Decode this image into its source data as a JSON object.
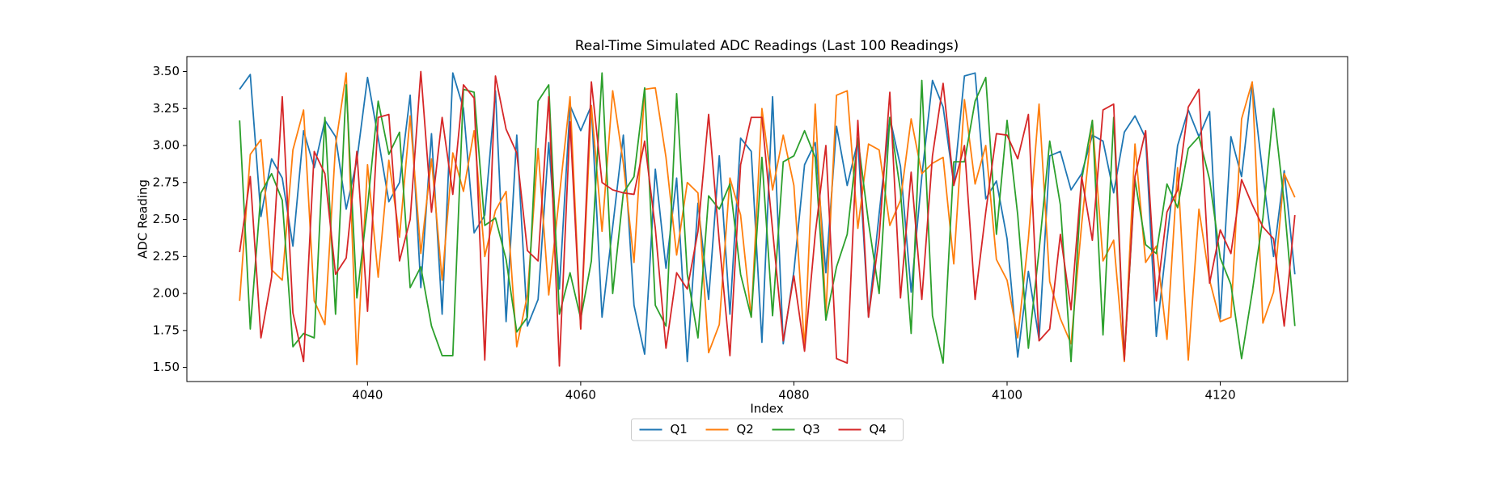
{
  "chart_data": {
    "type": "line",
    "title": "Real-Time Simulated ADC Readings (Last 100 Readings)",
    "x_label": "Index",
    "y_label": "ADC Reading",
    "x": [
      4028,
      4029,
      4030,
      4031,
      4032,
      4033,
      4034,
      4035,
      4036,
      4037,
      4038,
      4039,
      4040,
      4041,
      4042,
      4043,
      4044,
      4045,
      4046,
      4047,
      4048,
      4049,
      4050,
      4051,
      4052,
      4053,
      4054,
      4055,
      4056,
      4057,
      4058,
      4059,
      4060,
      4061,
      4062,
      4063,
      4064,
      4065,
      4066,
      4067,
      4068,
      4069,
      4070,
      4071,
      4072,
      4073,
      4074,
      4075,
      4076,
      4077,
      4078,
      4079,
      4080,
      4081,
      4082,
      4083,
      4084,
      4085,
      4086,
      4087,
      4088,
      4089,
      4090,
      4091,
      4092,
      4093,
      4094,
      4095,
      4096,
      4097,
      4098,
      4099,
      4100,
      4101,
      4102,
      4103,
      4104,
      4105,
      4106,
      4107,
      4108,
      4109,
      4110,
      4111,
      4112,
      4113,
      4114,
      4115,
      4116,
      4117,
      4118,
      4119,
      4120,
      4121,
      4122,
      4123,
      4124,
      4125,
      4126,
      4127
    ],
    "series": [
      {
        "name": "Q1",
        "color": "#1f77b4",
        "values": [
          3.38,
          3.48,
          2.52,
          2.91,
          2.78,
          2.32,
          3.1,
          2.85,
          3.17,
          3.06,
          2.57,
          2.9,
          3.46,
          3.05,
          2.62,
          2.75,
          3.34,
          2.04,
          3.08,
          1.86,
          3.49,
          3.25,
          2.41,
          2.53,
          3.37,
          1.81,
          3.07,
          1.78,
          1.96,
          3.02,
          2.03,
          3.27,
          3.1,
          3.27,
          1.84,
          2.45,
          3.07,
          1.92,
          1.59,
          2.84,
          2.17,
          2.78,
          1.54,
          2.61,
          1.96,
          2.93,
          1.86,
          3.05,
          2.96,
          1.67,
          3.33,
          1.66,
          2.15,
          2.87,
          3.02,
          2.14,
          3.13,
          2.73,
          3.03,
          1.84,
          2.54,
          3.19,
          2.86,
          2.01,
          2.79,
          3.44,
          3.26,
          2.74,
          3.47,
          3.49,
          2.64,
          2.76,
          2.37,
          1.57,
          2.15,
          1.69,
          2.93,
          2.96,
          2.7,
          2.81,
          3.07,
          3.03,
          2.68,
          3.09,
          3.2,
          3.05,
          1.71,
          2.36,
          3.0,
          3.24,
          3.06,
          3.23,
          1.83,
          3.06,
          2.79,
          3.42,
          2.8,
          2.25,
          2.83,
          2.13
        ]
      },
      {
        "name": "Q2",
        "color": "#ff7f0e",
        "values": [
          1.95,
          2.94,
          3.04,
          2.16,
          2.09,
          2.97,
          3.24,
          1.95,
          1.79,
          3.0,
          3.49,
          1.52,
          2.87,
          2.11,
          2.9,
          2.38,
          3.2,
          2.27,
          2.91,
          2.09,
          2.95,
          2.69,
          3.1,
          2.25,
          2.56,
          2.69,
          1.64,
          1.99,
          2.98,
          1.99,
          2.66,
          3.33,
          1.76,
          3.27,
          2.42,
          3.37,
          2.88,
          2.21,
          3.38,
          3.39,
          2.92,
          2.26,
          2.75,
          2.68,
          1.6,
          1.79,
          2.78,
          2.53,
          1.84,
          3.25,
          2.7,
          3.07,
          2.73,
          1.63,
          3.28,
          1.86,
          3.34,
          3.37,
          2.44,
          3.01,
          2.97,
          2.46,
          2.63,
          3.18,
          2.81,
          2.88,
          2.92,
          2.2,
          3.31,
          2.74,
          3.0,
          2.23,
          2.09,
          1.7,
          2.37,
          3.28,
          2.08,
          1.83,
          1.66,
          2.47,
          3.17,
          2.22,
          2.36,
          1.54,
          3.01,
          2.21,
          2.32,
          1.69,
          2.85,
          1.55,
          2.57,
          2.09,
          1.81,
          1.84,
          3.18,
          3.43,
          1.8,
          2.01,
          2.81,
          2.65
        ]
      },
      {
        "name": "Q3",
        "color": "#2ca02c",
        "values": [
          3.17,
          1.76,
          2.68,
          2.81,
          2.63,
          1.64,
          1.73,
          1.7,
          3.19,
          1.86,
          3.41,
          1.97,
          2.59,
          3.3,
          2.94,
          3.09,
          2.04,
          2.18,
          1.78,
          1.58,
          1.58,
          3.38,
          3.36,
          2.46,
          2.51,
          2.23,
          1.74,
          1.84,
          3.3,
          3.41,
          1.86,
          2.14,
          1.83,
          2.22,
          3.49,
          2.0,
          2.68,
          2.79,
          3.39,
          1.92,
          1.78,
          3.35,
          2.13,
          1.7,
          2.66,
          2.57,
          2.74,
          2.13,
          1.84,
          2.92,
          1.85,
          2.89,
          2.93,
          3.1,
          2.92,
          1.82,
          2.18,
          2.4,
          3.05,
          2.48,
          2.0,
          3.19,
          2.69,
          1.73,
          3.44,
          1.85,
          1.53,
          2.89,
          2.89,
          3.3,
          3.46,
          2.4,
          3.17,
          2.53,
          1.63,
          2.29,
          3.03,
          2.6,
          1.54,
          2.77,
          3.17,
          1.72,
          3.19,
          1.56,
          2.77,
          2.33,
          2.27,
          2.74,
          2.58,
          2.98,
          3.06,
          2.77,
          2.24,
          2.06,
          1.56,
          2.01,
          2.51,
          3.25,
          2.61,
          1.78
        ]
      },
      {
        "name": "Q4",
        "color": "#d62728",
        "values": [
          2.28,
          2.79,
          1.7,
          2.11,
          3.33,
          1.87,
          1.54,
          2.96,
          2.81,
          2.13,
          2.24,
          2.96,
          1.88,
          3.19,
          3.21,
          2.22,
          2.5,
          3.5,
          2.55,
          3.19,
          2.67,
          3.41,
          3.32,
          1.55,
          3.47,
          3.11,
          2.95,
          2.29,
          2.22,
          3.33,
          1.51,
          3.16,
          1.76,
          3.43,
          2.75,
          2.7,
          2.68,
          2.67,
          3.03,
          2.44,
          1.63,
          2.14,
          2.03,
          2.42,
          3.21,
          2.35,
          1.58,
          2.87,
          3.19,
          3.19,
          2.43,
          1.68,
          2.12,
          1.61,
          2.4,
          3.0,
          1.56,
          1.53,
          3.17,
          1.84,
          2.38,
          3.36,
          1.97,
          2.82,
          1.96,
          2.93,
          3.42,
          2.73,
          3.0,
          1.96,
          2.55,
          3.08,
          3.07,
          2.91,
          3.21,
          1.68,
          1.76,
          2.4,
          1.89,
          2.79,
          2.36,
          3.24,
          3.28,
          1.55,
          2.79,
          3.1,
          1.95,
          2.55,
          2.7,
          3.26,
          3.38,
          2.07,
          2.43,
          2.27,
          2.77,
          2.6,
          2.45,
          2.37,
          1.78,
          2.53
        ]
      }
    ],
    "xlim": [
      4023.05,
      4131.95
    ],
    "xticks": [
      4040,
      4060,
      4080,
      4100,
      4120
    ],
    "ylim": [
      1.405,
      3.601
    ],
    "yticks": [
      {
        "value": 1.5,
        "label": "1.50"
      },
      1.75,
      {
        "value": 2.0,
        "label": "2.00"
      },
      2.25,
      {
        "value": 2.5,
        "label": "2.50"
      },
      2.75,
      {
        "value": 3.0,
        "label": "3.00"
      },
      3.25,
      {
        "value": 3.5,
        "label": "3.50"
      }
    ],
    "grid": false,
    "legend": "lower center"
  }
}
